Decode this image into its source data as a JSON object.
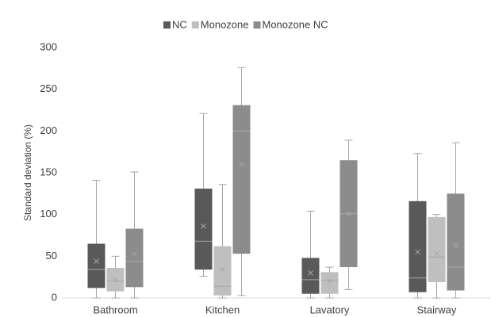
{
  "chart_data": {
    "type": "box",
    "y_label": "Standard deviation (%)",
    "categories": [
      "Bathroom",
      "Kitchen",
      "Lavatory",
      "Stairway"
    ],
    "ylim": [
      0,
      300
    ],
    "yticks": [
      0,
      50,
      100,
      150,
      200,
      250,
      300
    ],
    "series": [
      {
        "name": "NC",
        "color": "#595959",
        "values": [
          {
            "min": 0,
            "q1": 12,
            "median": 34,
            "q3": 65,
            "max": 141,
            "mean": 44
          },
          {
            "min": 26,
            "q1": 34,
            "median": 68,
            "q3": 131,
            "max": 221,
            "mean": 86
          },
          {
            "min": 0,
            "q1": 5,
            "median": 22,
            "q3": 48,
            "max": 104,
            "mean": 30
          },
          {
            "min": 0,
            "q1": 7,
            "median": 24,
            "q3": 116,
            "max": 173,
            "mean": 55
          }
        ]
      },
      {
        "name": "Monozone",
        "color": "#bfbfbf",
        "values": [
          {
            "min": 0,
            "q1": 8,
            "median": 20,
            "q3": 36,
            "max": 50,
            "mean": 22
          },
          {
            "min": 0,
            "q1": 3,
            "median": 14,
            "q3": 62,
            "max": 136,
            "mean": 34
          },
          {
            "min": 0,
            "q1": 5,
            "median": 21,
            "q3": 31,
            "max": 37,
            "mean": 20
          },
          {
            "min": 0,
            "q1": 19,
            "median": 49,
            "q3": 97,
            "max": 100,
            "mean": 53
          }
        ]
      },
      {
        "name": "Monozone NC",
        "color": "#8c8c8c",
        "values": [
          {
            "min": 0,
            "q1": 13,
            "median": 44,
            "q3": 83,
            "max": 151,
            "mean": 53
          },
          {
            "min": 3,
            "q1": 53,
            "median": 200,
            "q3": 231,
            "max": 276,
            "mean": 160
          },
          {
            "min": 10,
            "q1": 37,
            "median": 101,
            "q3": 165,
            "max": 189,
            "mean": 101
          },
          {
            "min": 0,
            "q1": 9,
            "median": 37,
            "q3": 125,
            "max": 186,
            "mean": 63
          }
        ]
      }
    ]
  }
}
